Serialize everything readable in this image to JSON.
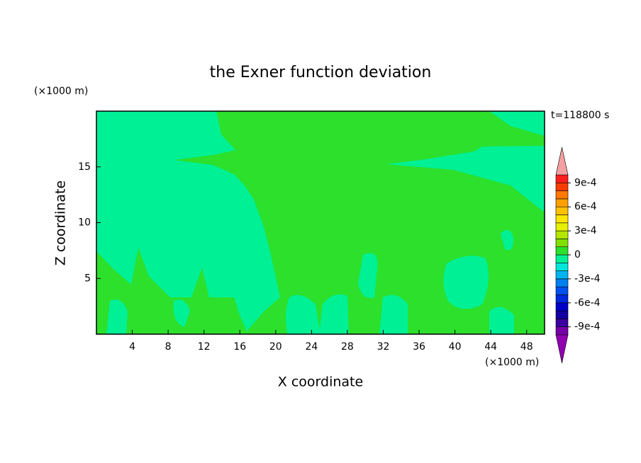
{
  "chart_data": {
    "type": "contour",
    "title": "the Exner function deviation",
    "xlabel": "X coordinate",
    "ylabel": "Z coordinate",
    "xunit": "(×1000 m)",
    "yunit": "(×1000 m)",
    "time_label": "t=118800 s",
    "xlim": [
      0,
      50
    ],
    "ylim": [
      0,
      20
    ],
    "xticks": [
      4,
      8,
      12,
      16,
      20,
      24,
      28,
      32,
      36,
      40,
      44,
      48
    ],
    "yticks": [
      5,
      10,
      15
    ],
    "levels": [
      -0.001,
      -0.0009,
      -0.0008,
      -0.0007,
      -0.0006,
      -0.0005,
      -0.0004,
      -0.0003,
      -0.0002,
      -0.0001,
      0,
      0.0001,
      0.0002,
      0.0003,
      0.0004,
      0.0005,
      0.0006,
      0.0007,
      0.0008,
      0.0009,
      0.001
    ],
    "colors": [
      "#7800a8",
      "#3c00a0",
      "#1400a0",
      "#0000c8",
      "#0028dc",
      "#0050f0",
      "#0080f0",
      "#00b4f0",
      "#00e6dc",
      "#00f096",
      "#2ce02c",
      "#82e000",
      "#b4e600",
      "#e6f000",
      "#ffe600",
      "#ffc000",
      "#ffa000",
      "#ff7800",
      "#ff3c00",
      "#ff1e1e"
    ],
    "extend_colors": {
      "under": "#9000b0",
      "over": "#f4a0a0"
    },
    "colorbar_ticks": [
      {
        "value": 0.0009,
        "label": "9e-4"
      },
      {
        "value": 0.0006,
        "label": "6e-4"
      },
      {
        "value": 0.0003,
        "label": "3e-4"
      },
      0,
      {
        "value": -0.0003,
        "label": "-3e-4"
      },
      {
        "value": -0.0006,
        "label": "-6e-4"
      },
      {
        "value": -0.0009,
        "label": "-9e-4"
      }
    ]
  }
}
